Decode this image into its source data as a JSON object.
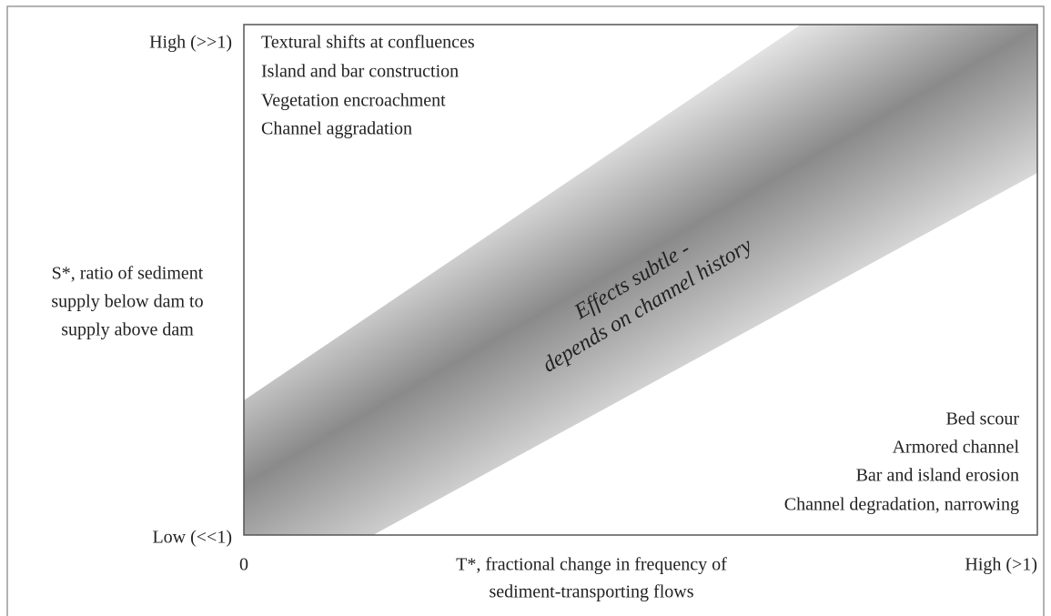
{
  "y_axis": {
    "high": "High (>>1)",
    "low": "Low (<<1)",
    "label_lines": [
      "S*, ratio of sediment",
      "supply below dam to",
      "supply above dam"
    ]
  },
  "x_axis": {
    "zero": "0",
    "high": "High (>1)",
    "label_lines": [
      "T*, fractional change in frequency of",
      "sediment-transporting flows"
    ]
  },
  "regions": {
    "upper_left": [
      "Textural shifts at confluences",
      "Island and bar construction",
      "Vegetation encroachment",
      "Channel aggradation"
    ],
    "center": [
      "Effects subtle -",
      "depends on channel history"
    ],
    "lower_right": [
      "Bed scour",
      "Armored channel",
      "Bar and island erosion",
      "Channel degradation, narrowing"
    ]
  }
}
